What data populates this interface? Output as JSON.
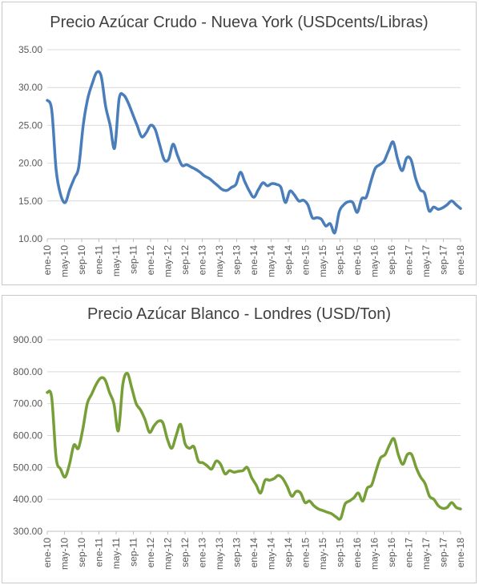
{
  "chart_data": [
    {
      "type": "line",
      "title": "Precio Azúcar Crudo - Nueva York (USDcents/Libras)",
      "xlabel": "",
      "ylabel": "",
      "ylim": [
        10,
        35
      ],
      "y_ticks": [
        "10.00",
        "15.00",
        "20.00",
        "25.00",
        "30.00",
        "35.00"
      ],
      "x_ticks": [
        "ene-10",
        "may-10",
        "sep-10",
        "ene-11",
        "may-11",
        "sep-11",
        "ene-12",
        "may-12",
        "sep-12",
        "ene-13",
        "may-13",
        "sep-13",
        "ene-14",
        "may-14",
        "sep-14",
        "ene-15",
        "may-15",
        "sep-15",
        "ene-16",
        "may-16",
        "sep-16",
        "ene-17",
        "may-17",
        "sep-17",
        "ene-18"
      ],
      "grid": "horizontal",
      "color": "#4a7ebb",
      "series": [
        {
          "values": [
            28.3,
            27.0,
            19.0,
            15.8,
            14.8,
            16.5,
            18.0,
            19.5,
            25.0,
            28.5,
            30.5,
            32.0,
            31.5,
            27.5,
            25.0,
            22.0,
            28.5,
            29.0,
            28.0,
            26.5,
            25.0,
            23.5,
            24.0,
            25.0,
            24.5,
            22.5,
            20.5,
            20.5,
            22.5,
            21.0,
            19.7,
            19.8,
            19.5,
            19.2,
            18.8,
            18.3,
            18.0,
            17.5,
            17.0,
            16.5,
            16.4,
            16.8,
            17.2,
            18.8,
            17.5,
            16.3,
            15.5,
            16.5,
            17.4,
            17.0,
            17.3,
            17.2,
            16.8,
            14.8,
            16.3,
            15.8,
            15.0,
            15.1,
            14.5,
            12.8,
            12.8,
            12.6,
            11.7,
            12.0,
            10.8,
            13.6,
            14.5,
            14.9,
            14.8,
            13.5,
            15.3,
            15.5,
            17.5,
            19.3,
            19.8,
            20.3,
            21.7,
            22.8,
            20.5,
            19.0,
            20.7,
            20.4,
            18.0,
            16.5,
            16.0,
            13.7,
            14.2,
            13.9,
            14.1,
            14.5,
            15.0,
            14.5,
            14.0
          ]
        }
      ]
    },
    {
      "type": "line",
      "title": "Precio Azúcar Blanco - Londres (USD/Ton)",
      "xlabel": "",
      "ylabel": "",
      "ylim": [
        300,
        900
      ],
      "y_ticks": [
        "300.00",
        "400.00",
        "500.00",
        "600.00",
        "700.00",
        "800.00",
        "900.00"
      ],
      "x_ticks": [
        "ene-10",
        "may-10",
        "sep-10",
        "ene-11",
        "may-11",
        "sep-11",
        "ene-12",
        "may-12",
        "sep-12",
        "ene-13",
        "may-13",
        "sep-13",
        "ene-14",
        "may-14",
        "sep-14",
        "ene-15",
        "may-15",
        "sep-15",
        "ene-16",
        "may-16",
        "sep-16",
        "ene-17",
        "may-17",
        "sep-17",
        "ene-18"
      ],
      "grid": "horizontal",
      "color": "#779f38",
      "series": [
        {
          "values": [
            735,
            720,
            530,
            495,
            470,
            510,
            570,
            560,
            620,
            700,
            730,
            760,
            780,
            775,
            735,
            700,
            615,
            760,
            795,
            750,
            700,
            680,
            650,
            610,
            630,
            645,
            640,
            590,
            560,
            600,
            635,
            575,
            560,
            565,
            520,
            515,
            505,
            495,
            520,
            510,
            480,
            490,
            485,
            488,
            490,
            500,
            468,
            445,
            420,
            460,
            460,
            465,
            475,
            465,
            440,
            410,
            425,
            420,
            390,
            395,
            380,
            370,
            365,
            360,
            355,
            345,
            340,
            385,
            395,
            405,
            420,
            395,
            435,
            445,
            490,
            530,
            540,
            570,
            590,
            540,
            510,
            540,
            540,
            500,
            470,
            450,
            410,
            400,
            380,
            372,
            375,
            390,
            375,
            370
          ]
        }
      ]
    }
  ]
}
